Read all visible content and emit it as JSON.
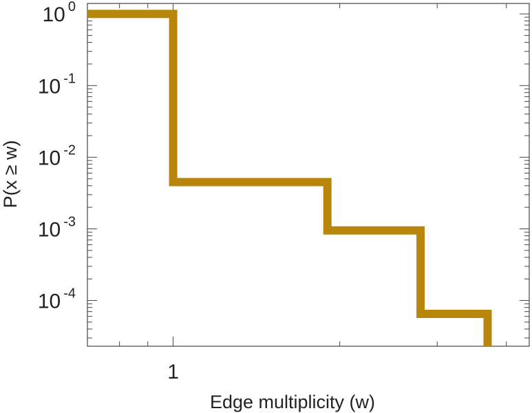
{
  "chart_data": {
    "type": "line",
    "step": true,
    "xlabel": "Edge multiplicity (w)",
    "ylabel": "P(x ≥ w)",
    "x_scale": "log",
    "y_scale": "log",
    "xlim": [
      0.7,
      4.4
    ],
    "ylim": [
      2.3e-05,
      1.4
    ],
    "x_ticks": [
      {
        "value": 1,
        "label": "1"
      }
    ],
    "y_ticks": [
      {
        "value": 1,
        "base": "10",
        "exp": "0"
      },
      {
        "value": 0.1,
        "base": "10",
        "exp": "-1"
      },
      {
        "value": 0.01,
        "base": "10",
        "exp": "-2"
      },
      {
        "value": 0.001,
        "base": "10",
        "exp": "-3"
      },
      {
        "value": 0.0001,
        "base": "10",
        "exp": "-4"
      }
    ],
    "series": [
      {
        "color": "#b8860b",
        "points": [
          {
            "x": 0.7,
            "y": 1.0
          },
          {
            "x": 1.0,
            "y": 1.0
          },
          {
            "x": 1.0,
            "y": 0.0045
          },
          {
            "x": 1.9,
            "y": 0.0045
          },
          {
            "x": 1.9,
            "y": 0.00095
          },
          {
            "x": 2.8,
            "y": 0.00095
          },
          {
            "x": 2.8,
            "y": 6.5e-05
          },
          {
            "x": 3.7,
            "y": 6.5e-05
          },
          {
            "x": 3.7,
            "y": 2.3e-05
          }
        ]
      }
    ],
    "grid": false,
    "legend": "none"
  }
}
